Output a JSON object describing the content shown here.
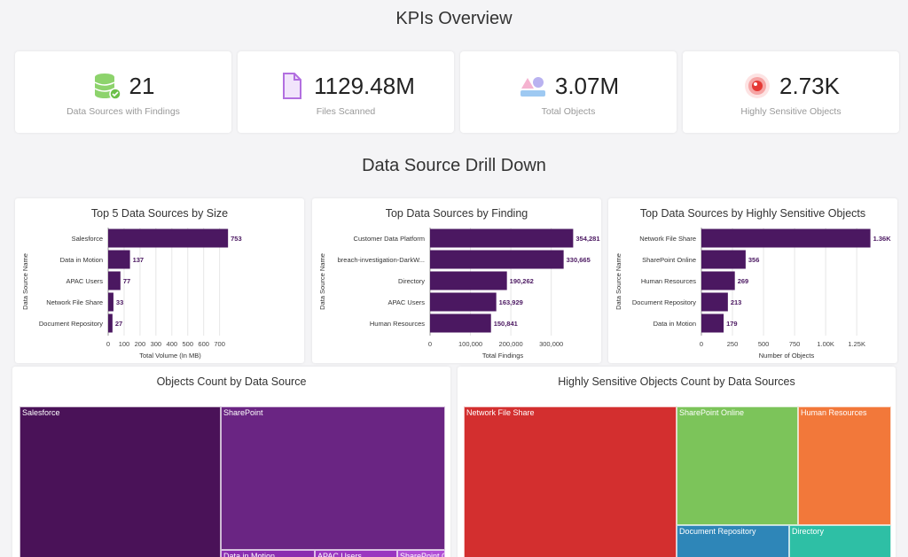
{
  "header": {
    "kpi_title": "KPIs Overview",
    "drill_title": "Data Source Drill Down"
  },
  "kpis": [
    {
      "icon": "database-check-icon",
      "value": "21",
      "label": "Data Sources with Findings"
    },
    {
      "icon": "file-icon",
      "value": "1129.48M",
      "label": "Files Scanned"
    },
    {
      "icon": "shapes-icon",
      "value": "3.07M",
      "label": "Total Objects"
    },
    {
      "icon": "target-icon",
      "value": "2.73K",
      "label": "Highly Sensitive Objects"
    }
  ],
  "colors": {
    "bar": "#4b1861",
    "label": "#4b1861"
  },
  "chart_data": [
    {
      "type": "bar",
      "orientation": "horizontal",
      "title": "Top 5 Data Sources by Size",
      "xlabel": "Total Volume (In MB)",
      "ylabel": "Data Source Name",
      "categories": [
        "Salesforce",
        "Data in Motion",
        "APAC Users",
        "Network File Share",
        "Document Repository"
      ],
      "values": [
        753,
        137,
        77,
        33,
        27
      ],
      "value_labels": [
        "753",
        "137",
        "77",
        "33",
        "27"
      ],
      "xlim": [
        0,
        780
      ],
      "xticks": [
        0,
        100,
        200,
        300,
        400,
        500,
        600,
        700
      ],
      "xtick_labels": [
        "0",
        "100",
        "200",
        "300",
        "400",
        "500",
        "600",
        "700"
      ],
      "grid": true
    },
    {
      "type": "bar",
      "orientation": "horizontal",
      "title": "Top Data Sources by Finding",
      "xlabel": "Total Findings",
      "ylabel": "Data Source Name",
      "categories": [
        "Customer Data Platform",
        "breach-investigation-DarkW...",
        "Directory",
        "APAC Users",
        "Human Resources"
      ],
      "values": [
        354281,
        330665,
        190262,
        163929,
        150841
      ],
      "value_labels": [
        "354,281",
        "330,665",
        "190,262",
        "163,929",
        "150,841"
      ],
      "xlim": [
        0,
        360000
      ],
      "xticks": [
        0,
        100000,
        200000,
        300000
      ],
      "xtick_labels": [
        "0",
        "100,000",
        "200,000",
        "300,000"
      ],
      "grid": true
    },
    {
      "type": "bar",
      "orientation": "horizontal",
      "title": "Top Data Sources by Highly Sensitive Objects",
      "xlabel": "Number of Objects",
      "ylabel": "Data Source Name",
      "categories": [
        "Network File Share",
        "SharePoint Online",
        "Human Resources",
        "Document Repository",
        "Data in Motion"
      ],
      "values": [
        1360,
        356,
        269,
        213,
        179
      ],
      "value_labels": [
        "1.36K",
        "356",
        "269",
        "213",
        "179"
      ],
      "xlim": [
        0,
        1370
      ],
      "xticks": [
        0,
        250,
        500,
        750,
        1000,
        1250
      ],
      "xtick_labels": [
        "0",
        "250",
        "500",
        "750",
        "1.00K",
        "1.25K"
      ],
      "grid": true
    }
  ],
  "treemaps": [
    {
      "title": "Objects Count by Data Source",
      "cells": [
        {
          "label": "Salesforce",
          "color": "#4a1258"
        },
        {
          "label": "SharePoint",
          "color": "#6a2583"
        },
        {
          "label": "Data in Motion",
          "color": "#8a2eb0"
        },
        {
          "label": "APAC Users",
          "color": "#9a37c0"
        },
        {
          "label": "SharePoint O",
          "color": "#b04fd6"
        }
      ]
    },
    {
      "title": "Highly Sensitive Objects Count by Data Sources",
      "cells": [
        {
          "label": "Network File Share",
          "color": "#d32f2f"
        },
        {
          "label": "SharePoint Online",
          "color": "#7cc45a"
        },
        {
          "label": "Human Resources",
          "color": "#f2783a"
        },
        {
          "label": "Document Repository",
          "color": "#2e86b8"
        },
        {
          "label": "Directory",
          "color": "#2ebfa5"
        }
      ]
    }
  ]
}
